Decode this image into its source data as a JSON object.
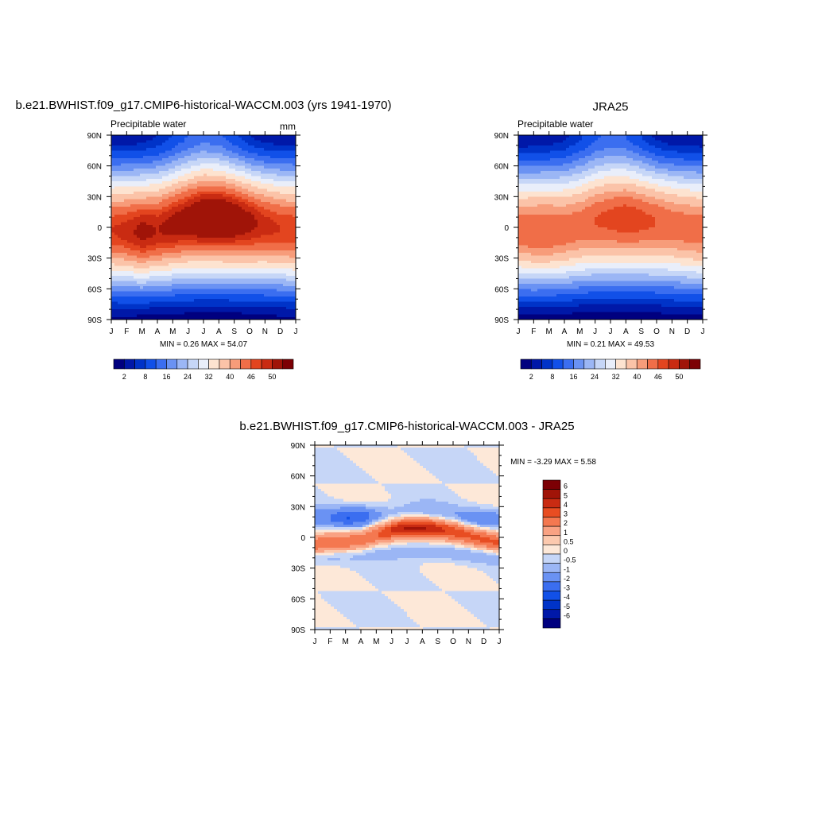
{
  "panels": [
    {
      "title": "b.e21.BWHIST.f09_g17.CMIP6-historical-WACCM.003 (yrs 1941-1970)",
      "subtitle": "Precipitable water",
      "units": "mm",
      "stats": "MIN =   0.26 MAX =  54.07",
      "colorbar_labels": [
        "2",
        "8",
        "16",
        "24",
        "32",
        "40",
        "46",
        "50"
      ]
    },
    {
      "title": "JRA25",
      "subtitle": "Precipitable water",
      "units": "",
      "stats": "MIN =   0.21 MAX =  49.53",
      "colorbar_labels": [
        "2",
        "8",
        "16",
        "24",
        "32",
        "40",
        "46",
        "50"
      ]
    },
    {
      "title": "b.e21.BWHIST.f09_g17.CMIP6-historical-WACCM.003 - JRA25",
      "subtitle": "",
      "units": "",
      "stats": "MIN =  -3.29 MAX =   5.58",
      "colorbar_labels": [
        "6",
        "5",
        "4",
        "3",
        "2",
        "1",
        "0.5",
        "0",
        "-0.5",
        "-1",
        "-2",
        "-3",
        "-4",
        "-5",
        "-6"
      ]
    }
  ],
  "x_ticks": [
    "J",
    "F",
    "M",
    "A",
    "M",
    "J",
    "J",
    "A",
    "S",
    "O",
    "N",
    "D",
    "J"
  ],
  "y_ticks": [
    "90N",
    "60N",
    "30N",
    "0",
    "30S",
    "60S",
    "90S"
  ],
  "chart_data": [
    {
      "type": "heatmap",
      "title": "b.e21.BWHIST.f09_g17.CMIP6-historical-WACCM.003 (yrs 1941-1970)",
      "subtitle": "Precipitable water",
      "units": "mm",
      "xlabel": "",
      "ylabel": "",
      "x": [
        "J",
        "F",
        "M",
        "A",
        "M",
        "J",
        "J",
        "A",
        "S",
        "O",
        "N",
        "D",
        "J"
      ],
      "ylim": [
        -90,
        90
      ],
      "min": 0.26,
      "max": 54.07,
      "levels": [
        2,
        5,
        8,
        12,
        16,
        20,
        24,
        28,
        32,
        36,
        40,
        43,
        46,
        48,
        50
      ],
      "palette": [
        "#00007f",
        "#0018a8",
        "#0033c8",
        "#1150e8",
        "#3b6ef0",
        "#6a92f3",
        "#9bb6f5",
        "#c6d6f7",
        "#e9eefa",
        "#fde3d0",
        "#fbc3a8",
        "#f79c7a",
        "#f06e48",
        "#e3451f",
        "#c92b12",
        "#a01408",
        "#7c0004"
      ],
      "itcz_lat": [
        -3,
        -4,
        -5,
        -3,
        2,
        7,
        10,
        10,
        8,
        5,
        2,
        -1,
        -3
      ],
      "peak": [
        48,
        49,
        51,
        50,
        51,
        52,
        54,
        54,
        53,
        51,
        49,
        48,
        48
      ],
      "nh_pole": [
        2.5,
        2.5,
        3,
        5,
        8,
        12,
        14,
        13,
        9,
        5,
        3,
        2.5,
        2.5
      ],
      "sh_pole": [
        1.5,
        1.5,
        1.2,
        1,
        0.8,
        0.6,
        0.5,
        0.5,
        0.6,
        0.8,
        1.2,
        1.5,
        1.5
      ]
    },
    {
      "type": "heatmap",
      "title": "JRA25",
      "subtitle": "Precipitable water",
      "xlabel": "",
      "ylabel": "",
      "x": [
        "J",
        "F",
        "M",
        "A",
        "M",
        "J",
        "J",
        "A",
        "S",
        "O",
        "N",
        "D",
        "J"
      ],
      "ylim": [
        -90,
        90
      ],
      "min": 0.21,
      "max": 49.53,
      "levels": [
        2,
        5,
        8,
        12,
        16,
        20,
        24,
        28,
        32,
        36,
        40,
        43,
        46,
        48,
        50
      ],
      "palette": [
        "#00007f",
        "#0018a8",
        "#0033c8",
        "#1150e8",
        "#3b6ef0",
        "#6a92f3",
        "#9bb6f5",
        "#c6d6f7",
        "#e9eefa",
        "#fde3d0",
        "#fbc3a8",
        "#f79c7a",
        "#f06e48",
        "#e3451f",
        "#c92b12",
        "#a01408",
        "#7c0004"
      ],
      "itcz_lat": [
        -3,
        -4,
        -4,
        -3,
        1,
        6,
        8,
        8,
        7,
        5,
        2,
        -1,
        -3
      ],
      "peak": [
        45,
        46,
        46,
        45,
        45,
        46,
        47,
        48,
        47,
        46,
        45,
        45,
        45
      ],
      "nh_pole": [
        2,
        2,
        2.5,
        4,
        7,
        11,
        13,
        12,
        8,
        4,
        2.5,
        2,
        2
      ],
      "sh_pole": [
        1.2,
        1.2,
        1,
        0.8,
        0.6,
        0.5,
        0.4,
        0.4,
        0.5,
        0.7,
        1,
        1.2,
        1.2
      ]
    },
    {
      "type": "heatmap",
      "title": "b.e21.BWHIST.f09_g17.CMIP6-historical-WACCM.003 - JRA25",
      "xlabel": "",
      "ylabel": "",
      "x": [
        "J",
        "F",
        "M",
        "A",
        "M",
        "J",
        "J",
        "A",
        "S",
        "O",
        "N",
        "D",
        "J"
      ],
      "ylim": [
        -90,
        90
      ],
      "min": -3.29,
      "max": 5.58,
      "levels": [
        -6,
        -5,
        -4,
        -3,
        -2,
        -1,
        -0.5,
        0,
        0.5,
        1,
        2,
        3,
        4,
        5,
        6
      ],
      "palette": [
        "#00007f",
        "#0018a8",
        "#0033c8",
        "#1150e8",
        "#3b6ef0",
        "#6a92f3",
        "#9bb6f5",
        "#c6d6f7",
        "#fde8d8",
        "#fcc9ae",
        "#f9a283",
        "#f47850",
        "#e84d22",
        "#c92b12",
        "#a01408",
        "#7c0004"
      ],
      "bands": [
        {
          "lat": [
            -8,
            -6,
            -5,
            -3,
            3,
            7,
            9,
            9,
            8,
            6,
            2,
            -2,
            -6
          ],
          "amp": [
            3,
            3,
            2.5,
            2.5,
            3,
            4.5,
            5.5,
            5.5,
            4.5,
            3.5,
            3,
            3,
            3
          ],
          "width": 7
        },
        {
          "lat": [
            18,
            18,
            19,
            20,
            22,
            23,
            24,
            24,
            23,
            21,
            19,
            18,
            18
          ],
          "amp": [
            -1.5,
            -2,
            -3,
            -3,
            -1.5,
            -1,
            -1,
            -1,
            -1,
            -1,
            -1.5,
            -2,
            -1.5
          ],
          "width": 7
        },
        {
          "lat": [
            -18,
            -18,
            -17,
            -16,
            -15,
            -15,
            -15,
            -15,
            -15,
            -16,
            -17,
            -18,
            -18
          ],
          "amp": [
            -1,
            -1,
            -0.8,
            -0.8,
            -0.8,
            -0.8,
            -0.8,
            -0.8,
            -0.8,
            -0.9,
            -1,
            -1,
            -1
          ],
          "width": 6
        }
      ]
    }
  ]
}
